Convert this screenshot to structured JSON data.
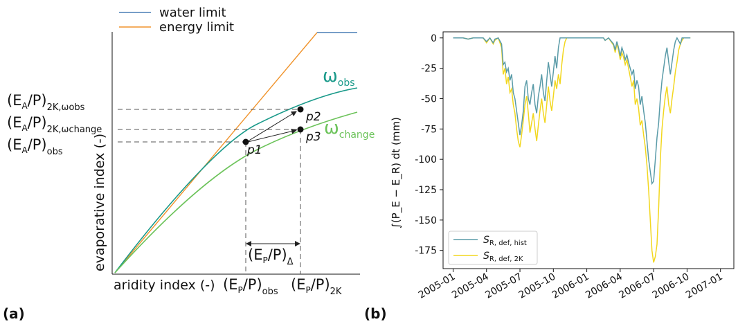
{
  "chart_data": [
    {
      "type": "line",
      "panel_label": "(a)",
      "legend": [
        {
          "name": "water limit",
          "color": "#4a7fb5"
        },
        {
          "name": "energy limit",
          "color": "#f0932b"
        }
      ],
      "curves": [
        {
          "name": "ω_obs",
          "label_main": "ω",
          "label_sub": "obs",
          "color": "#1a9a8a"
        },
        {
          "name": "ω_change",
          "label_main": "ω",
          "label_sub": "change",
          "color": "#6cc35a"
        }
      ],
      "points": [
        "p1",
        "p2",
        "p3"
      ],
      "xlabel": "aridity index (-)",
      "ylabel": "evaporative index (-)",
      "x_ticks": [
        {
          "main": "(E",
          "sub1": "P",
          "mid": "/P)",
          "sub2": "obs"
        },
        {
          "main": "(E",
          "sub1": "P",
          "mid": "/P)",
          "sub2": "2K"
        }
      ],
      "delta_label": {
        "main": "(E",
        "sub1": "P",
        "mid": "/P)",
        "sub2": "Δ"
      },
      "y_ticks": [
        {
          "main": "(E",
          "sub1": "A",
          "mid": "/P)",
          "sub2": "2K,ωobs"
        },
        {
          "main": "(E",
          "sub1": "A",
          "mid": "/P)",
          "sub2": "2K,ωchange"
        },
        {
          "main": "(E",
          "sub1": "A",
          "mid": "/P)",
          "sub2": "obs"
        }
      ]
    },
    {
      "type": "line",
      "panel_label": "(b)",
      "ylabel": "∫(P_E − E_R) dt  (mm)",
      "ylim": [
        -190,
        5
      ],
      "yticks": [
        0,
        -25,
        -50,
        -75,
        -100,
        -125,
        -150,
        -175
      ],
      "x_ticks": [
        "2005-01",
        "2005-04",
        "2005-07",
        "2005-10",
        "2006-01",
        "2006-04",
        "2006-07",
        "2006-10",
        "2007-01"
      ],
      "xlim": [
        -0.3,
        8.4
      ],
      "legend_position": "lower-left",
      "series": [
        {
          "name": "S_R, def, hist",
          "label_main": "S",
          "label_sub": "R, def, hist",
          "color": "#5a9ba8",
          "points": [
            [
              0,
              0
            ],
            [
              0.3,
              0
            ],
            [
              0.45,
              -1
            ],
            [
              0.6,
              0
            ],
            [
              0.9,
              0
            ],
            [
              1.0,
              -3
            ],
            [
              1.1,
              0
            ],
            [
              1.2,
              -4
            ],
            [
              1.25,
              -1
            ],
            [
              1.35,
              0
            ],
            [
              1.45,
              -5
            ],
            [
              1.5,
              -22
            ],
            [
              1.55,
              -20
            ],
            [
              1.6,
              -28
            ],
            [
              1.65,
              -25
            ],
            [
              1.7,
              -35
            ],
            [
              1.75,
              -30
            ],
            [
              1.8,
              -45
            ],
            [
              1.85,
              -50
            ],
            [
              1.9,
              -60
            ],
            [
              1.95,
              -70
            ],
            [
              2.0,
              -80
            ],
            [
              2.05,
              -72
            ],
            [
              2.1,
              -60
            ],
            [
              2.15,
              -40
            ],
            [
              2.2,
              -35
            ],
            [
              2.25,
              -50
            ],
            [
              2.3,
              -55
            ],
            [
              2.35,
              -45
            ],
            [
              2.4,
              -38
            ],
            [
              2.45,
              -55
            ],
            [
              2.5,
              -62
            ],
            [
              2.55,
              -48
            ],
            [
              2.6,
              -40
            ],
            [
              2.65,
              -30
            ],
            [
              2.7,
              -45
            ],
            [
              2.75,
              -52
            ],
            [
              2.8,
              -35
            ],
            [
              2.85,
              -20
            ],
            [
              2.9,
              -30
            ],
            [
              2.95,
              -40
            ],
            [
              3.0,
              -28
            ],
            [
              3.05,
              -15
            ],
            [
              3.1,
              -25
            ],
            [
              3.15,
              -8
            ],
            [
              3.2,
              0
            ],
            [
              3.4,
              0
            ],
            [
              3.8,
              0
            ],
            [
              4.2,
              0
            ],
            [
              4.5,
              0
            ],
            [
              4.55,
              -2
            ],
            [
              4.65,
              0
            ],
            [
              4.8,
              -5
            ],
            [
              4.85,
              -10
            ],
            [
              4.9,
              -3
            ],
            [
              4.95,
              -8
            ],
            [
              5.0,
              -15
            ],
            [
              5.05,
              -8
            ],
            [
              5.1,
              -12
            ],
            [
              5.15,
              -18
            ],
            [
              5.2,
              -14
            ],
            [
              5.25,
              -20
            ],
            [
              5.3,
              -25
            ],
            [
              5.35,
              -30
            ],
            [
              5.4,
              -26
            ],
            [
              5.45,
              -42
            ],
            [
              5.5,
              -35
            ],
            [
              5.55,
              -40
            ],
            [
              5.6,
              -55
            ],
            [
              5.65,
              -48
            ],
            [
              5.7,
              -60
            ],
            [
              5.75,
              -70
            ],
            [
              5.8,
              -85
            ],
            [
              5.85,
              -100
            ],
            [
              5.9,
              -110
            ],
            [
              5.95,
              -120
            ],
            [
              6.0,
              -118
            ],
            [
              6.05,
              -100
            ],
            [
              6.1,
              -82
            ],
            [
              6.15,
              -70
            ],
            [
              6.2,
              -50
            ],
            [
              6.25,
              -35
            ],
            [
              6.3,
              -25
            ],
            [
              6.35,
              -15
            ],
            [
              6.4,
              -8
            ],
            [
              6.45,
              -20
            ],
            [
              6.5,
              -30
            ],
            [
              6.55,
              -20
            ],
            [
              6.6,
              -10
            ],
            [
              6.65,
              -3
            ],
            [
              6.7,
              0
            ],
            [
              6.8,
              -5
            ],
            [
              6.85,
              0
            ],
            [
              7.0,
              0
            ],
            [
              7.1,
              0
            ]
          ]
        },
        {
          "name": "S_R, def, 2K",
          "label_main": "S",
          "label_sub": "R, def, 2K",
          "color": "#f2d71f",
          "points": [
            [
              0,
              0
            ],
            [
              0.3,
              0
            ],
            [
              0.45,
              -1
            ],
            [
              0.6,
              0
            ],
            [
              0.9,
              0
            ],
            [
              1.0,
              -4
            ],
            [
              1.1,
              0
            ],
            [
              1.2,
              -5
            ],
            [
              1.25,
              -2
            ],
            [
              1.35,
              0
            ],
            [
              1.45,
              -8
            ],
            [
              1.5,
              -30
            ],
            [
              1.55,
              -25
            ],
            [
              1.6,
              -38
            ],
            [
              1.65,
              -32
            ],
            [
              1.7,
              -45
            ],
            [
              1.75,
              -42
            ],
            [
              1.8,
              -55
            ],
            [
              1.85,
              -62
            ],
            [
              1.9,
              -75
            ],
            [
              1.95,
              -85
            ],
            [
              2.0,
              -90
            ],
            [
              2.05,
              -80
            ],
            [
              2.1,
              -68
            ],
            [
              2.15,
              -55
            ],
            [
              2.2,
              -48
            ],
            [
              2.25,
              -62
            ],
            [
              2.3,
              -78
            ],
            [
              2.35,
              -70
            ],
            [
              2.4,
              -62
            ],
            [
              2.45,
              -75
            ],
            [
              2.5,
              -85
            ],
            [
              2.55,
              -72
            ],
            [
              2.6,
              -60
            ],
            [
              2.65,
              -50
            ],
            [
              2.7,
              -62
            ],
            [
              2.75,
              -70
            ],
            [
              2.8,
              -55
            ],
            [
              2.85,
              -40
            ],
            [
              2.9,
              -52
            ],
            [
              2.95,
              -60
            ],
            [
              3.0,
              -48
            ],
            [
              3.05,
              -35
            ],
            [
              3.1,
              -42
            ],
            [
              3.15,
              -30
            ],
            [
              3.2,
              -38
            ],
            [
              3.25,
              -22
            ],
            [
              3.3,
              -10
            ],
            [
              3.35,
              -3
            ],
            [
              3.4,
              0
            ],
            [
              3.8,
              0
            ],
            [
              4.2,
              0
            ],
            [
              4.5,
              0
            ],
            [
              4.55,
              -2
            ],
            [
              4.65,
              0
            ],
            [
              4.8,
              -6
            ],
            [
              4.85,
              -12
            ],
            [
              4.9,
              -5
            ],
            [
              4.95,
              -10
            ],
            [
              5.0,
              -18
            ],
            [
              5.05,
              -12
            ],
            [
              5.1,
              -16
            ],
            [
              5.15,
              -22
            ],
            [
              5.2,
              -18
            ],
            [
              5.25,
              -25
            ],
            [
              5.3,
              -32
            ],
            [
              5.35,
              -40
            ],
            [
              5.4,
              -35
            ],
            [
              5.45,
              -55
            ],
            [
              5.5,
              -50
            ],
            [
              5.55,
              -58
            ],
            [
              5.6,
              -72
            ],
            [
              5.65,
              -68
            ],
            [
              5.7,
              -80
            ],
            [
              5.75,
              -90
            ],
            [
              5.8,
              -105
            ],
            [
              5.85,
              -125
            ],
            [
              5.9,
              -150
            ],
            [
              5.95,
              -175
            ],
            [
              6.0,
              -185
            ],
            [
              6.05,
              -180
            ],
            [
              6.1,
              -170
            ],
            [
              6.15,
              -140
            ],
            [
              6.2,
              -100
            ],
            [
              6.25,
              -75
            ],
            [
              6.3,
              -60
            ],
            [
              6.35,
              -48
            ],
            [
              6.4,
              -40
            ],
            [
              6.45,
              -55
            ],
            [
              6.5,
              -62
            ],
            [
              6.55,
              -50
            ],
            [
              6.6,
              -40
            ],
            [
              6.65,
              -28
            ],
            [
              6.7,
              -20
            ],
            [
              6.75,
              -10
            ],
            [
              6.8,
              -5
            ],
            [
              6.85,
              -2
            ],
            [
              6.9,
              0
            ],
            [
              7.0,
              0
            ],
            [
              7.1,
              0
            ]
          ]
        }
      ]
    }
  ]
}
